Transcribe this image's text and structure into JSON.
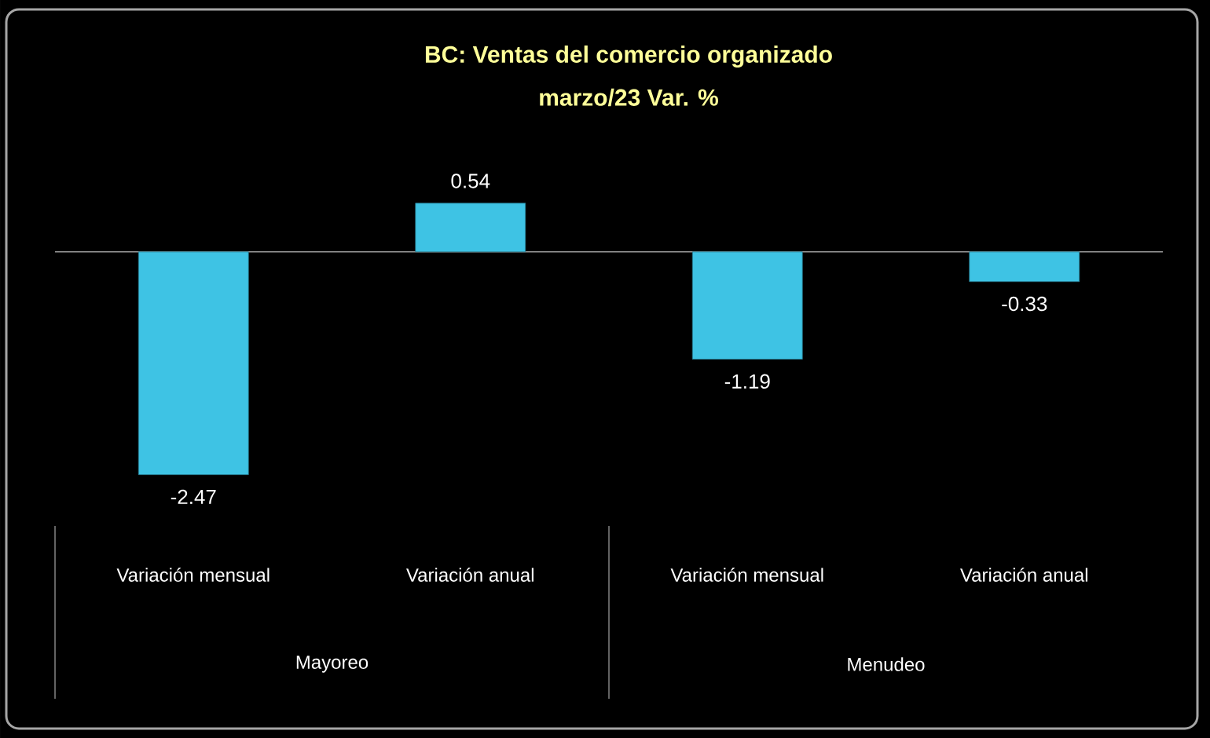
{
  "chart_data": {
    "type": "bar",
    "title": "BC: Ventas del comercio organizado",
    "subtitle": "marzo/23 Var. %",
    "categories": [
      "Variación mensual",
      "Variación anual",
      "Variación mensual",
      "Variación anual"
    ],
    "values": [
      -2.47,
      0.54,
      -1.19,
      -0.33
    ],
    "color": "#3ec3e4",
    "data_labels": true,
    "annotations": [
      "Mayoreo",
      "Menudeo"
    ]
  }
}
